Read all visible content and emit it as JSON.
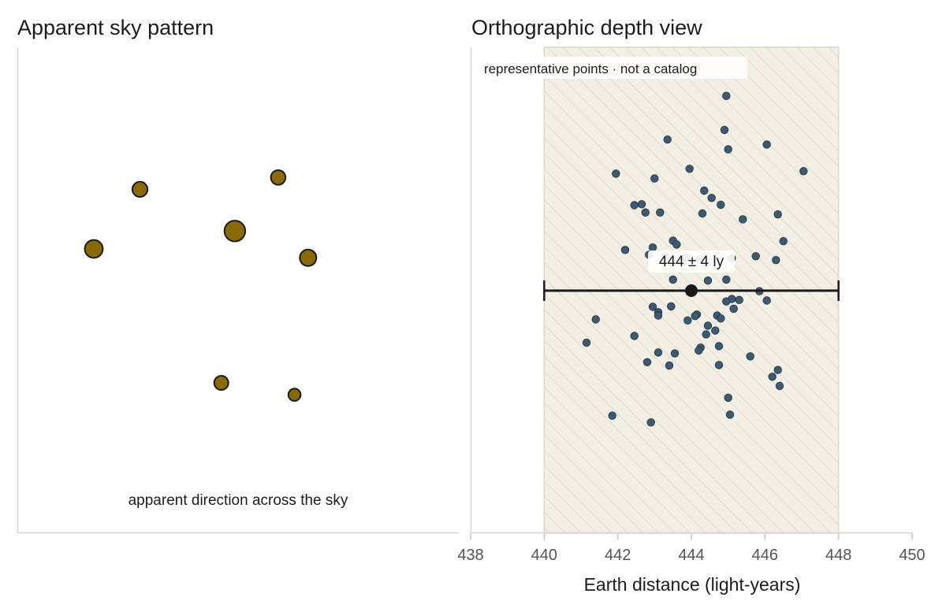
{
  "chart_data": [
    {
      "type": "scatter",
      "title": "Apparent sky pattern",
      "caption": "apparent direction across the sky",
      "axes_visible": false,
      "star_color": "#8a6a05",
      "stars": [
        {
          "x": 0.17,
          "y": 0.79,
          "size": 1.6
        },
        {
          "x": 0.68,
          "y": 0.83,
          "size": 1.55
        },
        {
          "x": 0.52,
          "y": 0.65,
          "size": 2.2
        },
        {
          "x": 0.0,
          "y": 0.59,
          "size": 1.9
        },
        {
          "x": 0.79,
          "y": 0.56,
          "size": 1.75
        },
        {
          "x": 0.47,
          "y": 0.14,
          "size": 1.5
        },
        {
          "x": 0.74,
          "y": 0.1,
          "size": 1.3
        }
      ]
    },
    {
      "type": "scatter",
      "title": "Orthographic depth view",
      "xlabel": "Earth distance (light-years)",
      "xlim": [
        438,
        450
      ],
      "xticks": [
        438,
        440,
        442,
        444,
        446,
        448,
        450
      ],
      "note": "representative points · not a catalog",
      "point_color": "#3d5a73",
      "band": {
        "from": 440,
        "to": 448,
        "fill": "#f3efe4",
        "hatch": "#e3dccb"
      },
      "estimate": {
        "value": 444,
        "error": 4,
        "label": "444 ± 4 ly",
        "color": "#1a1a1a"
      },
      "points": [
        [
          444.95,
          0.9
        ],
        [
          444.9,
          0.83
        ],
        [
          443.35,
          0.81
        ],
        [
          446.05,
          0.8
        ],
        [
          445.0,
          0.79
        ],
        [
          443.95,
          0.75
        ],
        [
          447.05,
          0.745
        ],
        [
          441.95,
          0.74
        ],
        [
          443.0,
          0.73
        ],
        [
          444.35,
          0.705
        ],
        [
          444.55,
          0.69
        ],
        [
          442.45,
          0.675
        ],
        [
          442.65,
          0.677
        ],
        [
          444.8,
          0.676
        ],
        [
          442.75,
          0.66
        ],
        [
          443.15,
          0.66
        ],
        [
          444.3,
          0.658
        ],
        [
          446.35,
          0.656
        ],
        [
          445.4,
          0.646
        ],
        [
          443.5,
          0.602
        ],
        [
          443.6,
          0.594
        ],
        [
          446.5,
          0.601
        ],
        [
          442.2,
          0.583
        ],
        [
          442.95,
          0.588
        ],
        [
          442.85,
          0.573
        ],
        [
          443.3,
          0.57
        ],
        [
          443.85,
          0.567
        ],
        [
          444.2,
          0.563
        ],
        [
          445.1,
          0.566
        ],
        [
          445.75,
          0.57
        ],
        [
          446.3,
          0.562
        ],
        [
          443.5,
          0.522
        ],
        [
          444.45,
          0.52
        ],
        [
          444.95,
          0.522
        ],
        [
          445.85,
          0.498
        ],
        [
          445.1,
          0.482
        ],
        [
          445.3,
          0.48
        ],
        [
          446.05,
          0.479
        ],
        [
          444.95,
          0.477
        ],
        [
          442.95,
          0.466
        ],
        [
          443.45,
          0.467
        ],
        [
          445.15,
          0.462
        ],
        [
          443.1,
          0.455
        ],
        [
          443.1,
          0.448
        ],
        [
          444.15,
          0.45
        ],
        [
          444.7,
          0.448
        ],
        [
          444.1,
          0.447
        ],
        [
          444.8,
          0.442
        ],
        [
          443.9,
          0.438
        ],
        [
          441.4,
          0.44
        ],
        [
          444.45,
          0.427
        ],
        [
          444.65,
          0.417
        ],
        [
          444.4,
          0.409
        ],
        [
          442.45,
          0.406
        ],
        [
          441.15,
          0.392
        ],
        [
          444.75,
          0.385
        ],
        [
          444.25,
          0.382
        ],
        [
          444.2,
          0.376
        ],
        [
          443.1,
          0.372
        ],
        [
          443.55,
          0.37
        ],
        [
          445.6,
          0.364
        ],
        [
          442.8,
          0.352
        ],
        [
          443.4,
          0.345
        ],
        [
          444.75,
          0.346
        ],
        [
          446.35,
          0.336
        ],
        [
          446.2,
          0.322
        ],
        [
          446.4,
          0.303
        ],
        [
          445.0,
          0.279
        ],
        [
          445.05,
          0.244
        ],
        [
          441.85,
          0.242
        ],
        [
          442.9,
          0.228
        ]
      ]
    }
  ]
}
